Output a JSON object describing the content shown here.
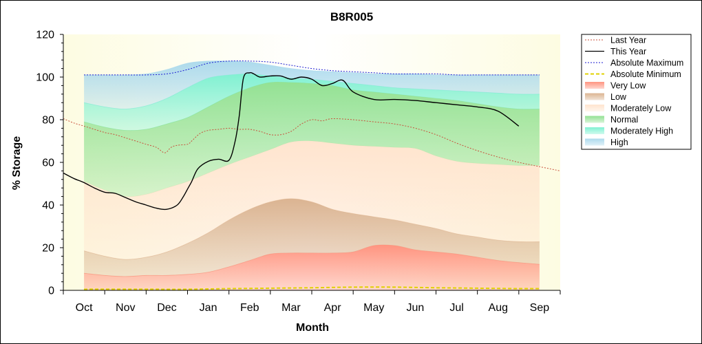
{
  "chart_data": {
    "type": "area",
    "title": "B8R005",
    "xlabel": "Month",
    "ylabel": "% Storage",
    "ylim": [
      0,
      120
    ],
    "yticks": [
      0,
      20,
      40,
      60,
      80,
      100,
      120
    ],
    "x_domain": [
      0,
      12
    ],
    "months": [
      "Oct",
      "Nov",
      "Dec",
      "Jan",
      "Feb",
      "Mar",
      "Apr",
      "May",
      "Jun",
      "Jul",
      "Aug",
      "Sep"
    ],
    "band_x": [
      0.5,
      1,
      1.5,
      2,
      2.5,
      3,
      3.5,
      4,
      4.5,
      5,
      5.5,
      6,
      6.5,
      7,
      7.5,
      8,
      8.5,
      9,
      9.5,
      10,
      10.5,
      11,
      11.5
    ],
    "bands": [
      {
        "name": "Very Low",
        "color": "#ff8f7a",
        "lower": [
          0,
          0,
          0,
          0,
          0,
          0,
          0,
          0,
          0,
          0,
          0,
          0,
          0,
          0,
          0,
          0,
          0,
          0,
          0,
          0,
          0,
          0,
          0
        ],
        "upper": [
          8,
          7,
          6.5,
          7,
          7,
          7.5,
          8.5,
          11,
          14,
          17,
          17.5,
          17.5,
          17.5,
          18,
          21,
          21,
          19,
          18,
          17,
          15.5,
          14,
          13,
          12.2
        ]
      },
      {
        "name": "Low",
        "color": "#d9b08c",
        "lower": [
          8,
          7,
          6.5,
          7,
          7,
          7.5,
          8.5,
          11,
          14,
          17,
          17.5,
          17.5,
          17.5,
          18,
          21,
          21,
          19,
          18,
          17,
          15.5,
          14,
          13,
          12.2
        ],
        "upper": [
          18.5,
          16,
          14.5,
          15.5,
          18,
          22,
          27,
          33,
          38,
          41.5,
          43,
          41.5,
          38,
          36,
          34.5,
          33,
          31,
          29,
          26.5,
          25,
          23.5,
          22.8,
          22.8
        ]
      },
      {
        "name": "Moderately Low",
        "color": "#ffe3cc",
        "lower": [
          18.5,
          16,
          14.5,
          15.5,
          18,
          22,
          27,
          33,
          38,
          41.5,
          43,
          41.5,
          38,
          36,
          34.5,
          33,
          31,
          29,
          26.5,
          25,
          23.5,
          22.8,
          22.8
        ],
        "upper": [
          51,
          47,
          44,
          45,
          48,
          51,
          55,
          59,
          62.5,
          66,
          69.5,
          70,
          69,
          68,
          67.5,
          67,
          66.5,
          63,
          60.5,
          59.5,
          59,
          58.5,
          58.5
        ]
      },
      {
        "name": "Normal",
        "color": "#8ee08e",
        "lower": [
          51,
          47,
          44,
          45,
          48,
          51,
          55,
          59,
          62.5,
          66,
          69.5,
          70,
          69,
          68,
          67.5,
          67,
          66.5,
          63,
          60.5,
          59.5,
          59,
          58.5,
          58.5
        ],
        "upper": [
          79,
          76.5,
          75,
          75.5,
          78,
          81,
          86,
          91,
          95,
          97.5,
          97.5,
          97,
          96,
          94,
          93,
          92,
          91,
          90,
          89,
          87.5,
          86,
          85,
          85
        ]
      },
      {
        "name": "Moderately High",
        "color": "#7af0d0",
        "lower": [
          79,
          76.5,
          75,
          75.5,
          78,
          81,
          86,
          91,
          95,
          97.5,
          97.5,
          97,
          96,
          94,
          93,
          92,
          91,
          90,
          89,
          87.5,
          86,
          85,
          85
        ],
        "upper": [
          88,
          86,
          85,
          86.5,
          90,
          95,
          99.5,
          101,
          101.5,
          100.5,
          99.5,
          99,
          98,
          97,
          96,
          95,
          94.5,
          94,
          93.5,
          93,
          92.5,
          92,
          92
        ]
      },
      {
        "name": "High",
        "color": "#a8d8ec",
        "lower": [
          88,
          86,
          85,
          86.5,
          90,
          95,
          99.5,
          101,
          101.5,
          100.5,
          99.5,
          99,
          98,
          97,
          96,
          95,
          94.5,
          94,
          93.5,
          93,
          92.5,
          92,
          92
        ],
        "upper": [
          101,
          101,
          101,
          101.5,
          103.5,
          106.5,
          107.5,
          107.5,
          107,
          105.5,
          104,
          103,
          102.5,
          102,
          101.5,
          101.5,
          101.5,
          101,
          101,
          101,
          101,
          101,
          101
        ]
      }
    ],
    "lines": [
      {
        "name": "Last Year",
        "color": "#c8503c",
        "style": "dotted",
        "x": [
          0,
          0.25,
          0.5,
          0.75,
          1,
          1.25,
          1.5,
          1.75,
          2,
          2.25,
          2.45,
          2.6,
          2.75,
          3,
          3.1,
          3.3,
          3.5,
          3.75,
          4,
          4.25,
          4.5,
          4.75,
          5,
          5.25,
          5.5,
          5.75,
          6,
          6.25,
          6.5,
          7,
          7.5,
          8,
          8.5,
          9,
          9.5,
          10,
          10.5,
          11,
          11.5,
          12
        ],
        "y": [
          80.5,
          78.5,
          77,
          75.5,
          74,
          73,
          71.5,
          70,
          68.5,
          67,
          64.5,
          67,
          68,
          68.5,
          70,
          73.5,
          75,
          75.5,
          76,
          75.5,
          75.5,
          74.5,
          73,
          73,
          74.5,
          78,
          80,
          79.5,
          80.5,
          80,
          79,
          78,
          76,
          73,
          69,
          65.5,
          62.5,
          60,
          58,
          56
        ]
      },
      {
        "name": "This Year",
        "color": "#000000",
        "style": "solid",
        "x": [
          0,
          0.25,
          0.5,
          0.75,
          1,
          1.25,
          1.5,
          1.75,
          2,
          2.25,
          2.5,
          2.75,
          2.9,
          3,
          3.1,
          3.25,
          3.5,
          3.75,
          4,
          4.15,
          4.25,
          4.35,
          4.5,
          4.6,
          4.75,
          5,
          5.25,
          5.5,
          5.75,
          6,
          6.25,
          6.5,
          6.75,
          7,
          7.5,
          8,
          8.5,
          9,
          9.5,
          10,
          10.5,
          11
        ],
        "y": [
          55,
          52.5,
          50.5,
          48,
          46,
          45.5,
          43.5,
          41.5,
          40,
          38.5,
          38,
          40,
          44,
          47.5,
          51,
          57,
          60.5,
          61.5,
          61,
          70,
          82,
          99.5,
          102,
          101.5,
          100,
          100.5,
          100.5,
          99,
          100,
          99,
          96,
          97,
          98.5,
          93,
          89.5,
          89.5,
          89,
          88,
          87,
          86,
          84,
          77
        ]
      },
      {
        "name": "Absolute Maximum",
        "color": "#1a1ad0",
        "style": "dotted",
        "x": [
          0.5,
          1,
          1.5,
          2,
          2.5,
          3,
          3.5,
          4,
          4.5,
          5,
          5.5,
          6,
          6.5,
          7,
          7.5,
          8,
          8.5,
          9,
          9.5,
          10,
          10.5,
          11,
          11.5
        ],
        "y": [
          101,
          101,
          101,
          101,
          101.5,
          103.5,
          106.5,
          107.5,
          107.5,
          107,
          105.5,
          104,
          103,
          102.5,
          102,
          101.5,
          101.5,
          101.5,
          101,
          101,
          101,
          101,
          101
        ]
      },
      {
        "name": "Absolute Minimum",
        "color": "#e0d000",
        "style": "dashed",
        "x": [
          0.5,
          2,
          3,
          4,
          5,
          6,
          7,
          8,
          9,
          10,
          11,
          11.5
        ],
        "y": [
          0.5,
          0.5,
          0.5,
          0.8,
          1,
          1.2,
          1.5,
          1.5,
          1.2,
          1,
          0.8,
          0.8
        ]
      }
    ],
    "legend": [
      "Last Year",
      "This Year",
      "Absolute Maximum",
      "Absolute Minimum",
      "Very Low",
      "Low",
      "Moderately Low",
      "Normal",
      "Moderately High",
      "High"
    ],
    "legend_position": "right",
    "grid": false
  }
}
